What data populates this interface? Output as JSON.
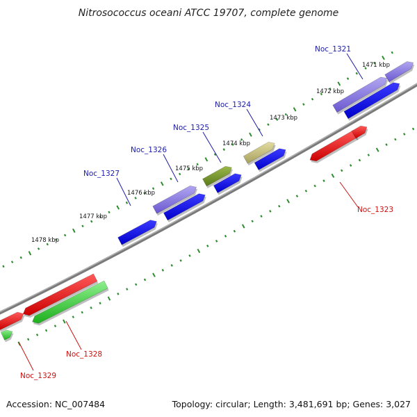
{
  "title": "Nitrosococcus oceani ATCC 19707, complete genome",
  "footer": {
    "accession": "Accession: NC_007484",
    "summary": "Topology: circular; Length: 3,481,691 bp; Genes: 3,027"
  },
  "colors": {
    "backbone": "#888888",
    "tick": "#2e8b2e",
    "label_forward": "#1a1aaa",
    "label_reverse": "#cc1111",
    "gene_blue": "#0000ee",
    "gene_purple": "#7b68d8",
    "gene_olive": "#6b8e23",
    "gene_khaki": "#bdb76b",
    "gene_red": "#ee0000",
    "gene_green": "#22cc22"
  },
  "kbp_labels": [
    "1471 kbp",
    "1472 kbp",
    "1473 kbp",
    "1474 kbp",
    "1475 kbp",
    "1476 kbp",
    "1477 kbp",
    "1478 kbp"
  ],
  "gene_labels": [
    {
      "text": "Noc_1321",
      "strand": "forward"
    },
    {
      "text": "Noc_1324",
      "strand": "forward"
    },
    {
      "text": "Noc_1325",
      "strand": "forward"
    },
    {
      "text": "Noc_1326",
      "strand": "forward"
    },
    {
      "text": "Noc_1327",
      "strand": "forward"
    },
    {
      "text": "Noc_1323",
      "strand": "reverse"
    },
    {
      "text": "Noc_1328",
      "strand": "reverse"
    },
    {
      "text": "Noc_1329",
      "strand": "reverse"
    }
  ]
}
